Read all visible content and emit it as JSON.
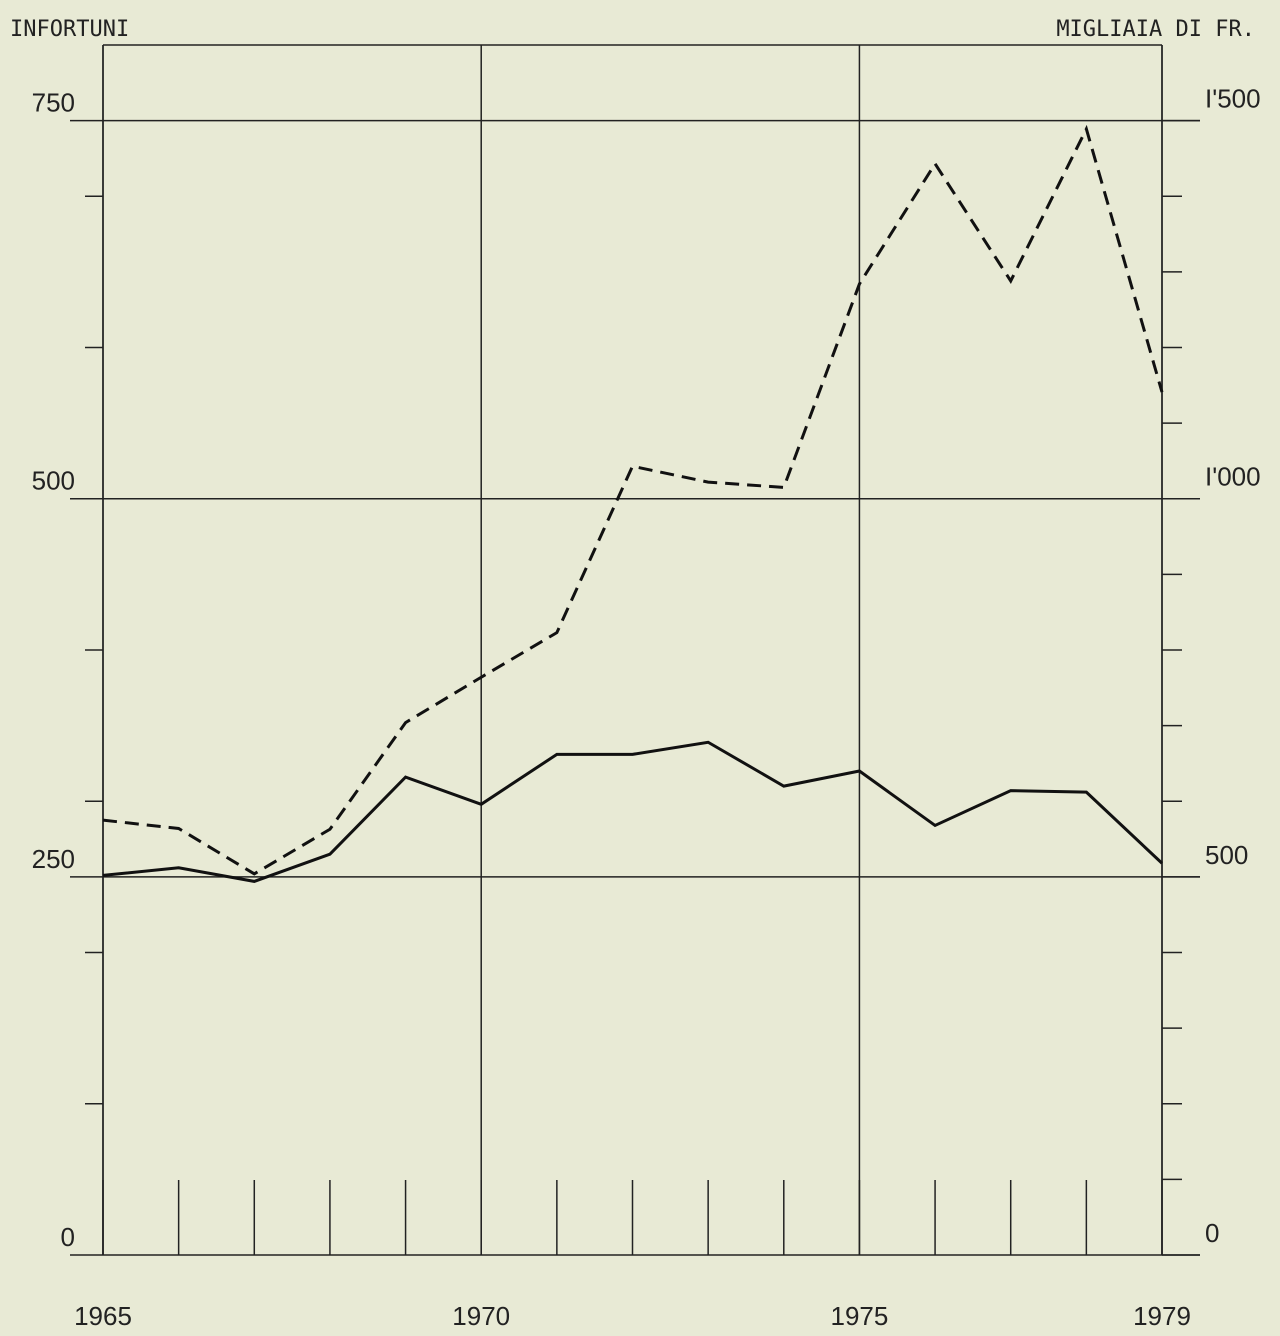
{
  "chart_data": {
    "type": "line",
    "y_label": "INFORTUNI",
    "y2_label": "MIGLIAIA DI FR.",
    "x": [
      1965,
      1966,
      1967,
      1968,
      1969,
      1970,
      1971,
      1972,
      1973,
      1974,
      1975,
      1976,
      1977,
      1978,
      1979
    ],
    "series": [
      {
        "color": "#111111",
        "dashed": false,
        "axis": "y",
        "values": [
          251,
          256,
          247,
          265,
          316,
          298,
          331,
          331,
          339,
          310,
          320,
          284,
          307,
          306,
          259
        ]
      },
      {
        "color": "#111111",
        "dashed": true,
        "axis": "y2",
        "values": [
          575,
          564,
          504,
          563,
          704,
          764,
          823,
          1043,
          1022,
          1015,
          1284,
          1443,
          1288,
          1489,
          1141
        ]
      }
    ],
    "xlim": [
      1965,
      1979
    ],
    "xticks": [
      1965,
      1970,
      1975,
      1979
    ],
    "ylim": [
      0,
      800
    ],
    "yticks": [
      0,
      250,
      500,
      750
    ],
    "yminorticks": [
      100,
      200,
      300,
      400,
      600,
      700
    ],
    "y2lim": [
      0,
      1600
    ],
    "y2ticks": [
      0,
      500,
      {
        "value": 1000,
        "label": "I'000"
      },
      {
        "value": 1500,
        "label": "I'500"
      }
    ],
    "y2minorticks": [
      100,
      200,
      300,
      400,
      600,
      700,
      800,
      900,
      1100,
      1200,
      1300,
      1400
    ],
    "grid": true
  }
}
